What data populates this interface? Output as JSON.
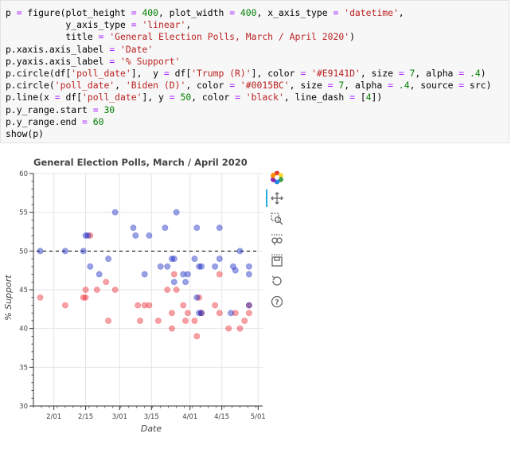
{
  "code": {
    "lines": [
      "p = figure(plot_height = 400, plot_width = 400, x_axis_type = 'datetime',",
      "           y_axis_type = 'linear',",
      "           title = 'General Election Polls, March / April 2020')",
      "p.xaxis.axis_label = 'Date'",
      "p.yaxis.axis_label = '% Support'",
      "p.circle(df['poll_date'],  y = df['Trump (R)'], color = '#E9141D', size = 7, alpha = .4)",
      "p.circle('poll_date', 'Biden (D)', color = '#0015BC', size = 7, alpha = .4, source = src)",
      "p.line(x = df['poll_date'], y = 50, color = 'black', line_dash = [4])",
      "p.y_range.start = 30",
      "p.y_range.end = 60",
      "show(p)"
    ]
  },
  "toolbar": {
    "tools": [
      {
        "name": "bokeh-logo-icon"
      },
      {
        "name": "pan-icon"
      },
      {
        "name": "box-zoom-icon"
      },
      {
        "name": "wheel-zoom-icon"
      },
      {
        "name": "save-icon"
      },
      {
        "name": "reset-icon"
      },
      {
        "name": "help-icon"
      }
    ]
  },
  "chart_data": {
    "type": "scatter",
    "title": "General Election Polls, March / April 2020",
    "xlabel": "Date",
    "ylabel": "% Support",
    "ylim": [
      30,
      60
    ],
    "xlim": [
      "2020-01-23",
      "2020-05-03"
    ],
    "x_ticks": [
      {
        "date": "2020-02-01",
        "label": "2/01"
      },
      {
        "date": "2020-02-15",
        "label": "2/15"
      },
      {
        "date": "2020-03-01",
        "label": "3/01"
      },
      {
        "date": "2020-03-15",
        "label": "3/15"
      },
      {
        "date": "2020-04-01",
        "label": "4/01"
      },
      {
        "date": "2020-04-15",
        "label": "4/15"
      },
      {
        "date": "2020-05-01",
        "label": "5/01"
      }
    ],
    "y_ticks": [
      30,
      35,
      40,
      45,
      50,
      55,
      60
    ],
    "grid": true,
    "reference_line": {
      "y": 50,
      "color": "#000000",
      "dash": true
    },
    "series": [
      {
        "color": "#E9141D",
        "alpha": 0.4,
        "points": [
          [
            "2020-01-26",
            44
          ],
          [
            "2020-02-06",
            43
          ],
          [
            "2020-02-14",
            44
          ],
          [
            "2020-02-15",
            45
          ],
          [
            "2020-02-15",
            44
          ],
          [
            "2020-02-17",
            52
          ],
          [
            "2020-02-20",
            45
          ],
          [
            "2020-02-24",
            46
          ],
          [
            "2020-02-25",
            41
          ],
          [
            "2020-02-28",
            45
          ],
          [
            "2020-03-09",
            43
          ],
          [
            "2020-03-10",
            41
          ],
          [
            "2020-03-12",
            43
          ],
          [
            "2020-03-14",
            43
          ],
          [
            "2020-03-18",
            41
          ],
          [
            "2020-03-22",
            45
          ],
          [
            "2020-03-24",
            42
          ],
          [
            "2020-03-24",
            40
          ],
          [
            "2020-03-26",
            45
          ],
          [
            "2020-03-25",
            47
          ],
          [
            "2020-03-29",
            43
          ],
          [
            "2020-03-30",
            41
          ],
          [
            "2020-03-31",
            42
          ],
          [
            "2020-04-03",
            41
          ],
          [
            "2020-04-04",
            39
          ],
          [
            "2020-04-05",
            44
          ],
          [
            "2020-04-06",
            42
          ],
          [
            "2020-04-12",
            43
          ],
          [
            "2020-04-14",
            42
          ],
          [
            "2020-04-14",
            47
          ],
          [
            "2020-04-18",
            40
          ],
          [
            "2020-04-21",
            42
          ],
          [
            "2020-04-23",
            40
          ],
          [
            "2020-04-25",
            41
          ],
          [
            "2020-04-27",
            42
          ],
          [
            "2020-04-27",
            43
          ]
        ]
      },
      {
        "color": "#0015BC",
        "alpha": 0.4,
        "points": [
          [
            "2020-01-26",
            50
          ],
          [
            "2020-02-06",
            50
          ],
          [
            "2020-02-14",
            50
          ],
          [
            "2020-02-15",
            52
          ],
          [
            "2020-02-16",
            52
          ],
          [
            "2020-02-17",
            48
          ],
          [
            "2020-02-21",
            47
          ],
          [
            "2020-02-25",
            49
          ],
          [
            "2020-02-28",
            55
          ],
          [
            "2020-03-07",
            53
          ],
          [
            "2020-03-08",
            52
          ],
          [
            "2020-03-12",
            47
          ],
          [
            "2020-03-14",
            52
          ],
          [
            "2020-03-19",
            48
          ],
          [
            "2020-03-21",
            53
          ],
          [
            "2020-03-22",
            48
          ],
          [
            "2020-03-24",
            49
          ],
          [
            "2020-03-25",
            46
          ],
          [
            "2020-03-26",
            55
          ],
          [
            "2020-03-25",
            49
          ],
          [
            "2020-03-29",
            47
          ],
          [
            "2020-03-30",
            46
          ],
          [
            "2020-03-31",
            47
          ],
          [
            "2020-04-03",
            49
          ],
          [
            "2020-04-04",
            53
          ],
          [
            "2020-04-04",
            44
          ],
          [
            "2020-04-05",
            48
          ],
          [
            "2020-04-06",
            48
          ],
          [
            "2020-04-05",
            42
          ],
          [
            "2020-04-06",
            42
          ],
          [
            "2020-04-12",
            48
          ],
          [
            "2020-04-14",
            49
          ],
          [
            "2020-04-14",
            53
          ],
          [
            "2020-04-19",
            42
          ],
          [
            "2020-04-20",
            48
          ],
          [
            "2020-04-21",
            47.5
          ],
          [
            "2020-04-23",
            50
          ],
          [
            "2020-04-27",
            47
          ],
          [
            "2020-04-27",
            48
          ],
          [
            "2020-04-27",
            43
          ]
        ]
      }
    ]
  }
}
